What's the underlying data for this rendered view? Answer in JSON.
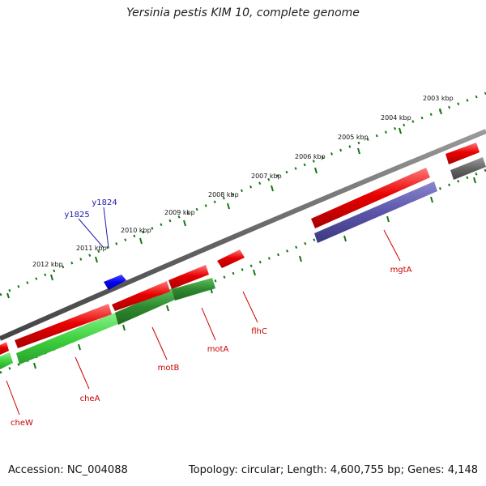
{
  "title": "Yersinia pestis KIM 10, complete genome",
  "footer": {
    "accession": "Accession: NC_004088",
    "summary": "Topology: circular; Length: 4,600,755 bp; Genes: 4,148"
  },
  "colors": {
    "strand_forward": "#e80000",
    "strand_reverse_green": "#2f8a2f",
    "strand_reverse_light": "#3fd23f",
    "strand_purple": "#5a55a8",
    "strand_gray": "#666666",
    "highlight_blue": "#0000ee",
    "tick_green": "#117711",
    "label_red": "#cc0000",
    "label_blue": "#1a1aa8"
  },
  "kbp_labels": [
    "2003 kbp",
    "2004 kbp",
    "2005 kbp",
    "2006 kbp",
    "2007 kbp",
    "2008 kbp",
    "2009 kbp",
    "2010 kbp",
    "2011 kbp",
    "2012 kbp"
  ],
  "gene_labels": [
    "mgtA",
    "flhC",
    "motA",
    "motB",
    "cheA",
    "cheW"
  ],
  "blue_labels": [
    "y1824",
    "y1825"
  ]
}
